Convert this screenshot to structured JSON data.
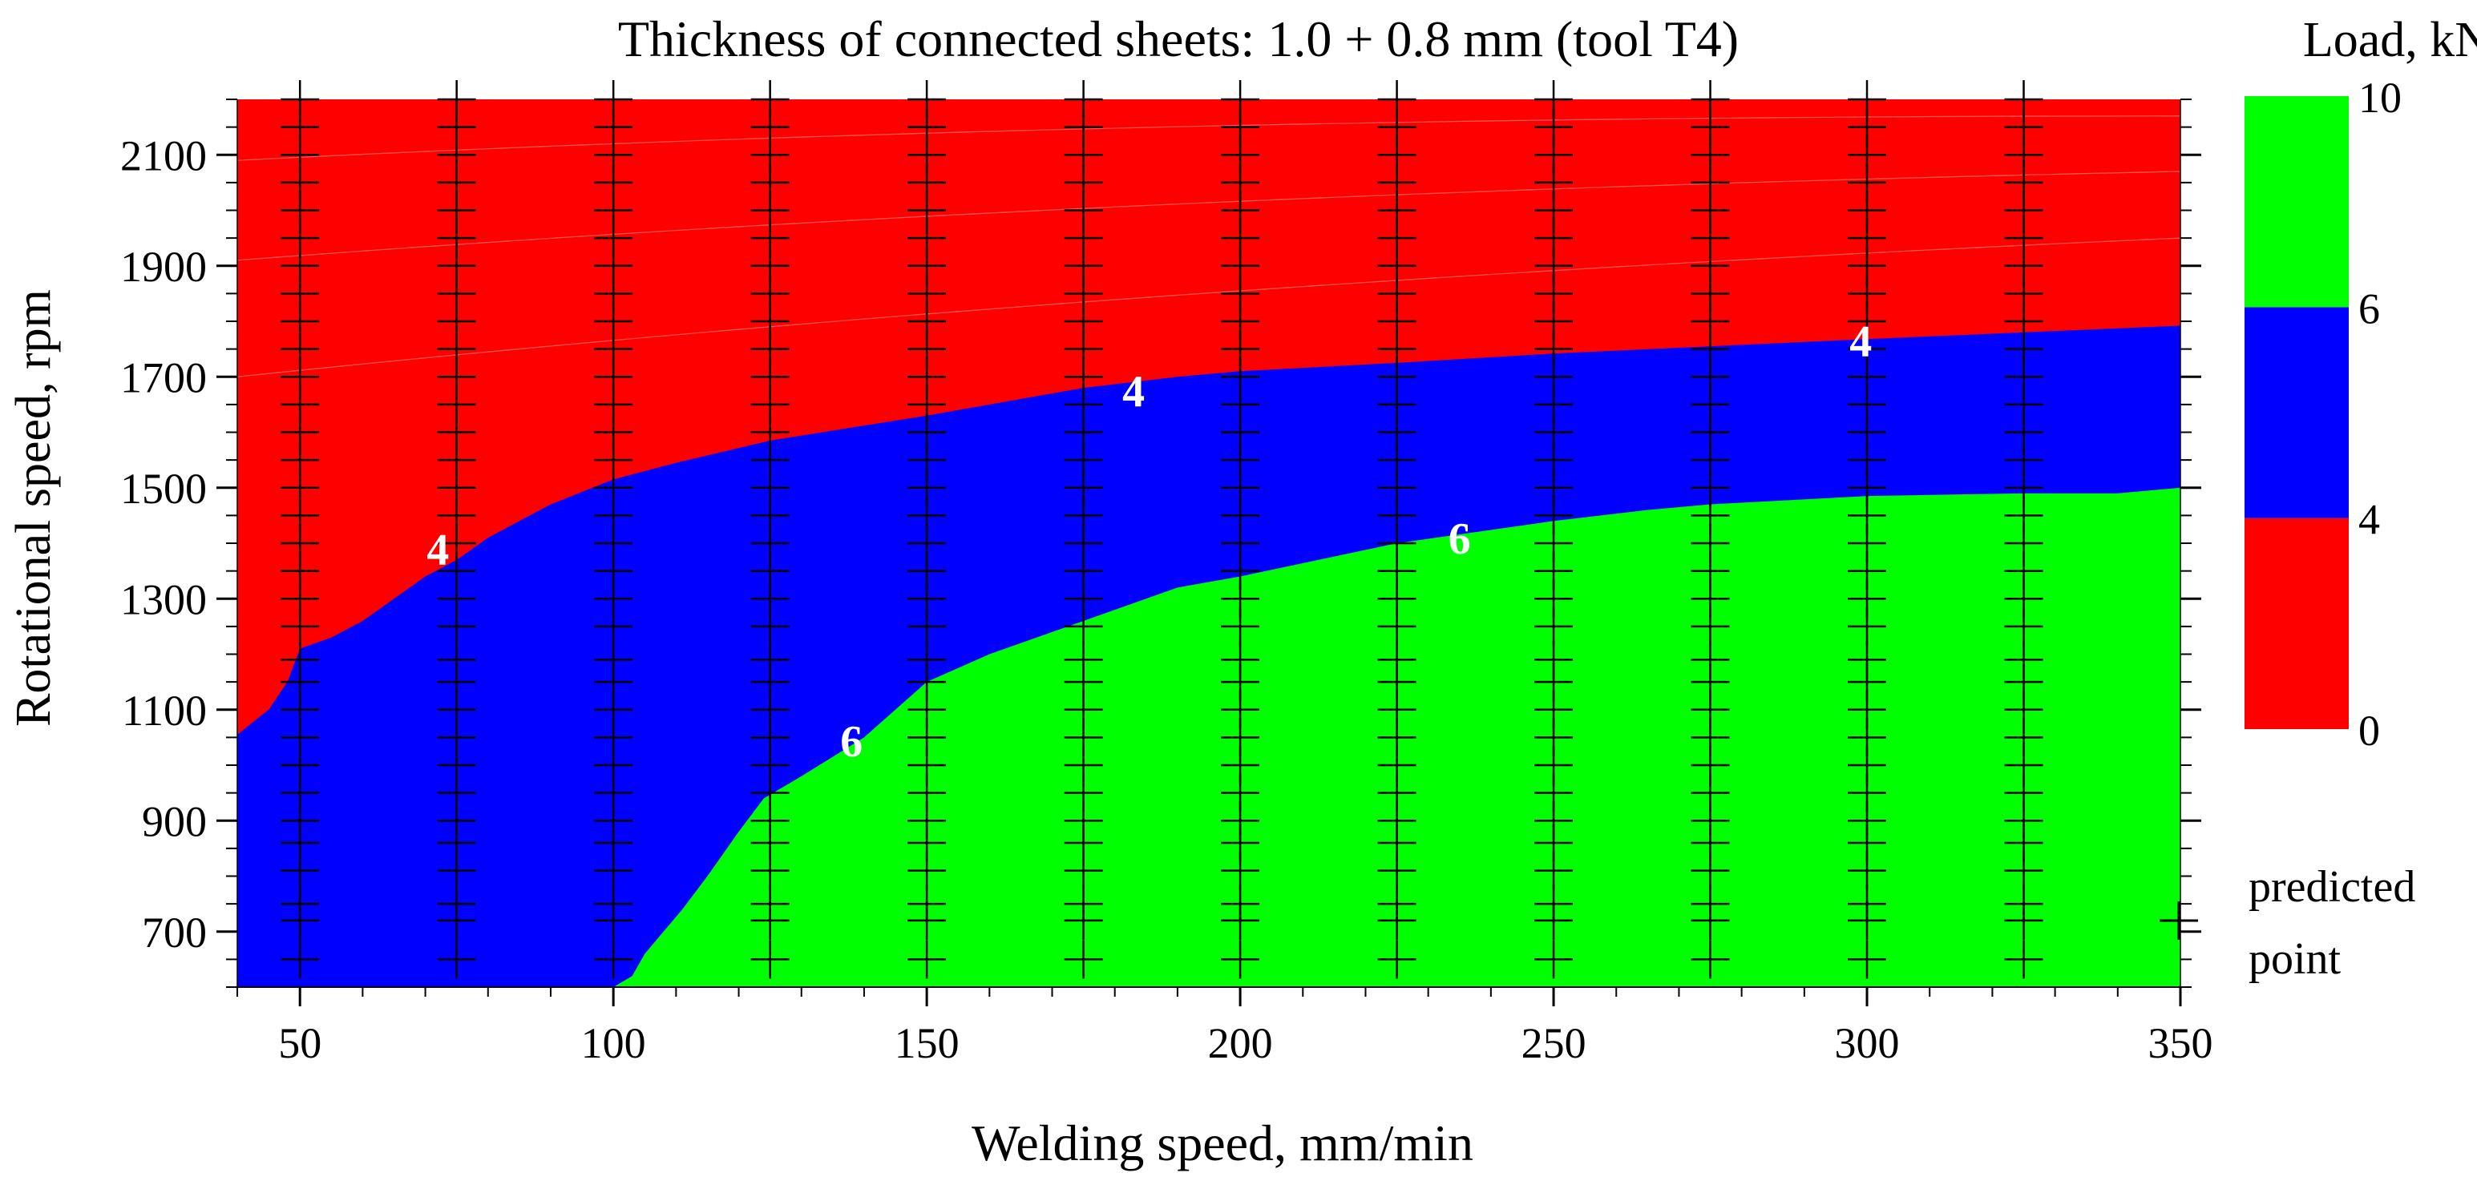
{
  "chart_data": {
    "type": "contour",
    "title": "Thickness of connected sheets: 1.0 + 0.8 mm (tool T4)",
    "xlabel": "Welding speed, mm/min",
    "ylabel": "Rotational speed, rpm",
    "xlim": [
      40,
      350
    ],
    "ylim": [
      600,
      2200
    ],
    "xticks": [
      50,
      100,
      150,
      200,
      250,
      300,
      350
    ],
    "yticks": [
      700,
      900,
      1100,
      1300,
      1500,
      1700,
      1900,
      2100
    ],
    "colorbar": {
      "title": "Load, kN",
      "levels": [
        0,
        4,
        6,
        10
      ],
      "ticks": [
        "0",
        "4",
        "6",
        "10"
      ],
      "colors": [
        "#ff0000",
        "#0000ff",
        "#00ff00"
      ]
    },
    "regions": [
      {
        "range": "0-4 kN",
        "color": "#ff0000"
      },
      {
        "range": "4-6 kN",
        "color": "#0000ff"
      },
      {
        "range": "6-10 kN",
        "color": "#00ff00"
      }
    ],
    "contours": [
      {
        "level": 4,
        "points": [
          [
            40,
            1055
          ],
          [
            45,
            1100
          ],
          [
            48,
            1150
          ],
          [
            50,
            1210
          ],
          [
            55,
            1230
          ],
          [
            60,
            1260
          ],
          [
            65,
            1300
          ],
          [
            70,
            1340
          ],
          [
            75,
            1370
          ],
          [
            80,
            1410
          ],
          [
            90,
            1470
          ],
          [
            100,
            1515
          ],
          [
            110,
            1545
          ],
          [
            125,
            1585
          ],
          [
            150,
            1630
          ],
          [
            175,
            1680
          ],
          [
            190,
            1700
          ],
          [
            200,
            1710
          ],
          [
            225,
            1725
          ],
          [
            250,
            1742
          ],
          [
            275,
            1755
          ],
          [
            300,
            1768
          ],
          [
            325,
            1780
          ],
          [
            350,
            1792
          ]
        ]
      },
      {
        "level": 6,
        "points": [
          [
            100,
            600
          ],
          [
            103,
            620
          ],
          [
            105,
            660
          ],
          [
            108,
            700
          ],
          [
            111,
            740
          ],
          [
            115,
            800
          ],
          [
            120,
            880
          ],
          [
            124,
            940
          ],
          [
            130,
            980
          ],
          [
            140,
            1050
          ],
          [
            150,
            1150
          ],
          [
            160,
            1200
          ],
          [
            175,
            1260
          ],
          [
            190,
            1320
          ],
          [
            200,
            1340
          ],
          [
            225,
            1400
          ],
          [
            250,
            1440
          ],
          [
            265,
            1460
          ],
          [
            275,
            1470
          ],
          [
            300,
            1485
          ],
          [
            325,
            1490
          ],
          [
            340,
            1490
          ],
          [
            350,
            1500
          ]
        ]
      }
    ],
    "contour_labels": [
      {
        "text": "4",
        "x": 72,
        "y": 1390
      },
      {
        "text": "4",
        "x": 183,
        "y": 1675
      },
      {
        "text": "4",
        "x": 299,
        "y": 1765
      },
      {
        "text": "6",
        "x": 138,
        "y": 1045
      },
      {
        "text": "6",
        "x": 235,
        "y": 1410
      }
    ],
    "predicted_points": {
      "x": [
        50,
        75,
        100,
        125,
        150,
        175,
        200,
        225,
        250,
        275,
        300,
        325
      ],
      "y": [
        650,
        720,
        750,
        810,
        860,
        900,
        950,
        1000,
        1050,
        1100,
        1150,
        1190,
        1250,
        1300,
        1350,
        1400,
        1450,
        1500,
        1550,
        1600,
        1650,
        1700,
        1750,
        1800,
        1850,
        1900,
        1950,
        2000,
        2050,
        2100,
        2150,
        2200
      ]
    },
    "legend": {
      "marker": "+",
      "label_line1": "predicted",
      "label_line2": "point"
    }
  }
}
